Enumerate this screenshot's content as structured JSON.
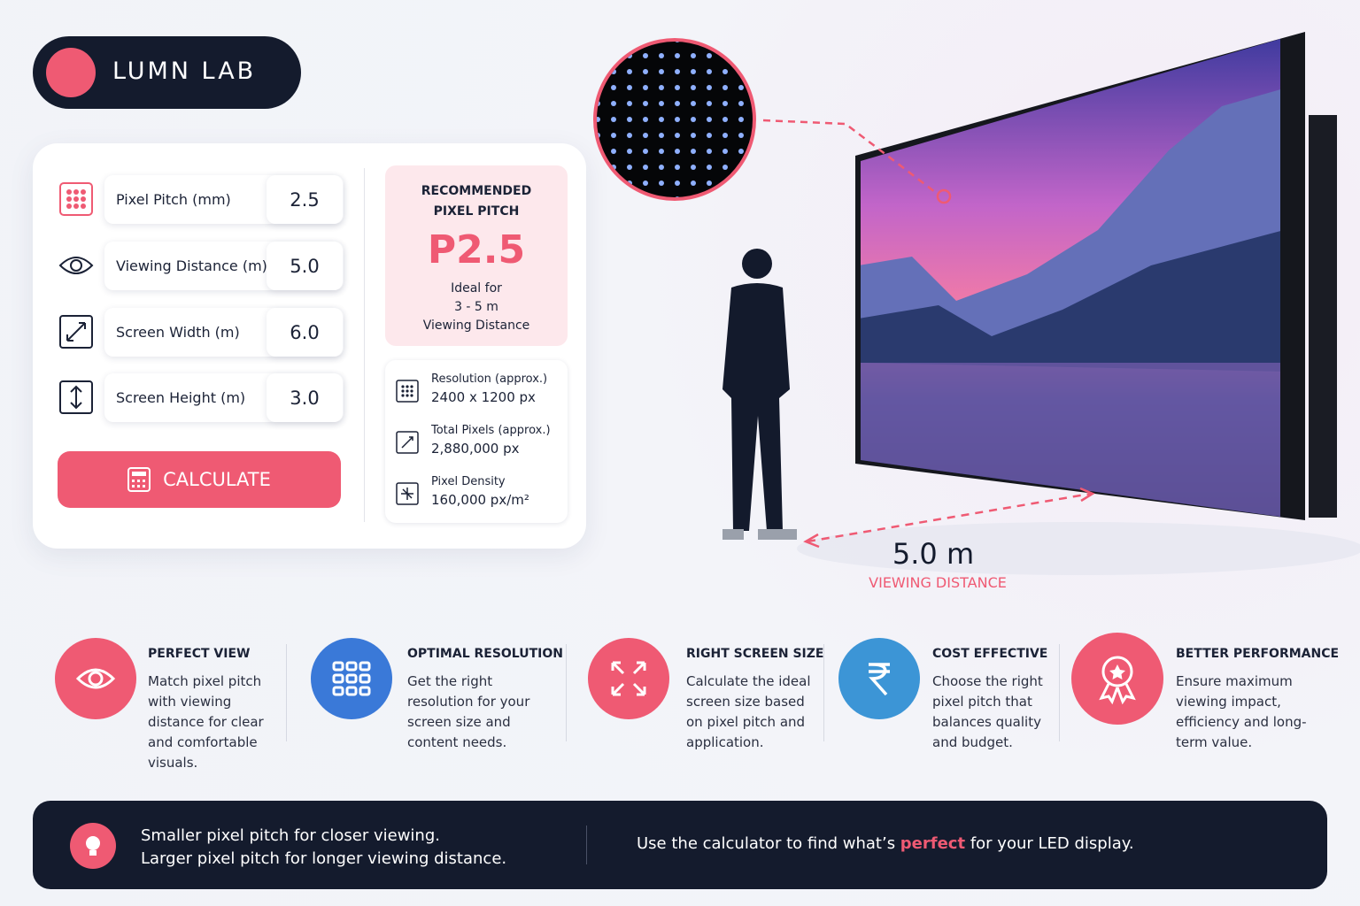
{
  "brand": "LUMN LAB",
  "calculator": {
    "inputs": [
      {
        "label": "Pixel Pitch (mm)",
        "value": "2.5"
      },
      {
        "label": "Viewing Distance (m)",
        "value": "5.0"
      },
      {
        "label": "Screen Width (m)",
        "value": "6.0"
      },
      {
        "label": "Screen Height (m)",
        "value": "3.0"
      }
    ],
    "button": "CALCULATE"
  },
  "recommendation": {
    "heading": [
      "RECOMMENDED",
      "PIXEL PITCH"
    ],
    "value": "P2.5",
    "note": [
      "Ideal for",
      "3 - 5 m",
      "Viewing Distance"
    ]
  },
  "specs": [
    {
      "label": "Resolution (approx.)",
      "value": "2400 x 1200 px"
    },
    {
      "label": "Total Pixels (approx.)",
      "value": "2,880,000 px"
    },
    {
      "label": "Pixel Density",
      "value": "160,000 px/m²"
    }
  ],
  "distance": {
    "value": "5.0 m",
    "label": "VIEWING DISTANCE"
  },
  "features": [
    {
      "title": "PERFECT VIEW",
      "text": "Match pixel pitch with viewing distance for clear and comfortable visuals."
    },
    {
      "title": "OPTIMAL RESOLUTION",
      "text": "Get the right resolution for your screen size and content needs."
    },
    {
      "title": "RIGHT SCREEN SIZE",
      "text": "Calculate the ideal screen size based on pixel pitch and application."
    },
    {
      "title": "COST EFFECTIVE",
      "text": "Choose the right pixel pitch that balances quality and budget."
    },
    {
      "title": "BETTER PERFORMANCE",
      "text": "Ensure maximum viewing impact, efficiency and long-term value."
    }
  ],
  "footer": {
    "tips": [
      "Smaller pixel pitch for closer viewing.",
      "Larger pixel pitch for longer viewing distance."
    ],
    "cta": [
      "Use the calculator to find what’s ",
      "perfect",
      " for your LED display."
    ]
  }
}
